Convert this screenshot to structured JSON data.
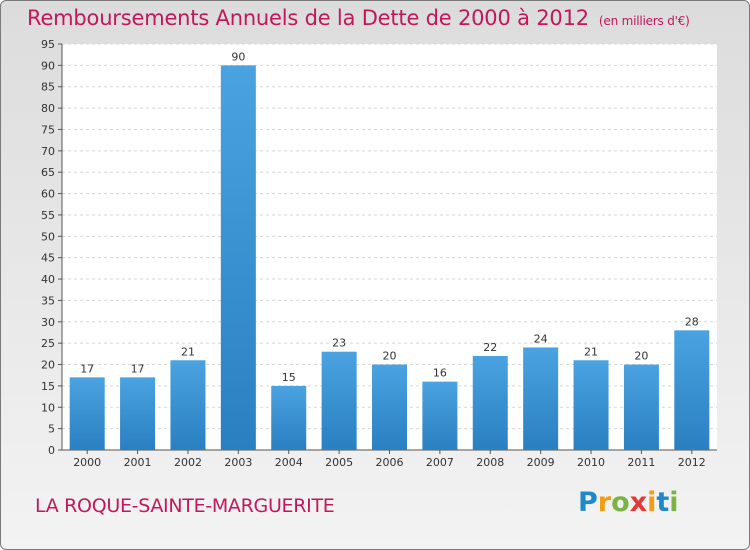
{
  "title": "Remboursements Annuels de la Dette de 2000 à 2012",
  "unit": "(en milliers d'€)",
  "commune": "LA ROQUE-SAINTE-MARGUERITE",
  "logo": {
    "letters": [
      "P",
      "r",
      "o",
      "x",
      "i",
      "t",
      "i"
    ],
    "colors": [
      "#1e88c8",
      "#f39c12",
      "#7cb342",
      "#e53935",
      "#f39c12",
      "#1e88c8",
      "#7cb342"
    ]
  },
  "colors": {
    "bar": "#4aa3e0",
    "bar_dark": "#2a7fc0",
    "text": "#c2185b"
  },
  "chart_data": {
    "type": "bar",
    "categories": [
      "2000",
      "2001",
      "2002",
      "2003",
      "2004",
      "2005",
      "2006",
      "2007",
      "2008",
      "2009",
      "2010",
      "2011",
      "2012"
    ],
    "values": [
      17,
      17,
      21,
      90,
      15,
      23,
      20,
      16,
      22,
      24,
      21,
      20,
      28
    ],
    "ylim": [
      0,
      95
    ],
    "yticks": [
      0,
      5,
      10,
      15,
      20,
      25,
      30,
      35,
      40,
      45,
      50,
      55,
      60,
      65,
      70,
      75,
      80,
      85,
      90,
      95
    ],
    "grid": true
  }
}
